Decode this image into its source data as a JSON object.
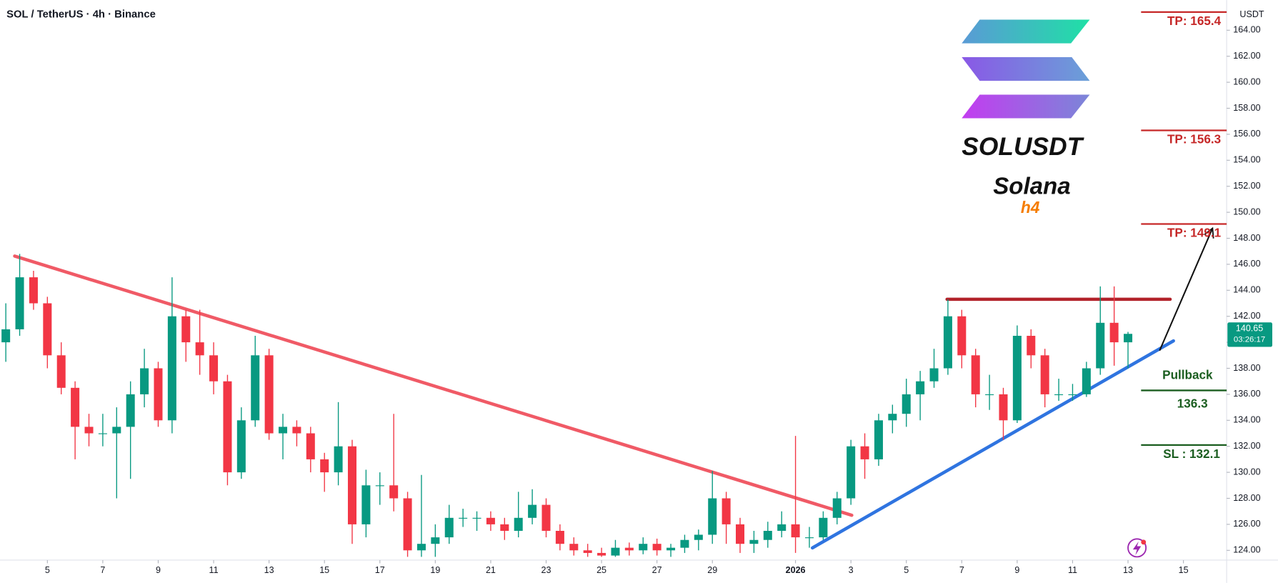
{
  "chart_data": {
    "type": "candlestick",
    "title": "SOL / TetherUS · 4h · Binance",
    "symbol": "SOLUSDT",
    "name": "Solana",
    "timeframe": "h4",
    "currency": "USDT",
    "last_price": 140.65,
    "countdown": "03:26:17",
    "up_color": "#089981",
    "down_color": "#f23645",
    "xlim": [
      2.29,
      46.56
    ],
    "ylim": [
      123.25,
      166.32
    ],
    "xticks": [
      {
        "value": 4,
        "label": "5"
      },
      {
        "value": 6,
        "label": "7"
      },
      {
        "value": 8,
        "label": "9"
      },
      {
        "value": 10,
        "label": "11"
      },
      {
        "value": 12,
        "label": "13"
      },
      {
        "value": 14,
        "label": "15"
      },
      {
        "value": 16,
        "label": "17"
      },
      {
        "value": 18,
        "label": "19"
      },
      {
        "value": 20,
        "label": "21"
      },
      {
        "value": 22,
        "label": "23"
      },
      {
        "value": 24,
        "label": "25"
      },
      {
        "value": 26,
        "label": "27"
      },
      {
        "value": 28,
        "label": "29"
      },
      {
        "value": 31,
        "label": "2026"
      },
      {
        "value": 33,
        "label": "3"
      },
      {
        "value": 35,
        "label": "5"
      },
      {
        "value": 37,
        "label": "7"
      },
      {
        "value": 39,
        "label": "9"
      },
      {
        "value": 41,
        "label": "11"
      },
      {
        "value": 43,
        "label": "13"
      },
      {
        "value": 45,
        "label": "15"
      }
    ],
    "yticks": [
      {
        "value": 124,
        "label": "124.00"
      },
      {
        "value": 126,
        "label": "126.00"
      },
      {
        "value": 128,
        "label": "128.00"
      },
      {
        "value": 130,
        "label": "130.00"
      },
      {
        "value": 132,
        "label": "132.00"
      },
      {
        "value": 134,
        "label": "134.00"
      },
      {
        "value": 136,
        "label": "136.00"
      },
      {
        "value": 138,
        "label": "138.00"
      },
      {
        "value": 140,
        "label": "140.00"
      },
      {
        "value": 142,
        "label": "142.00"
      },
      {
        "value": 144,
        "label": "144.00"
      },
      {
        "value": 146,
        "label": "146.00"
      },
      {
        "value": 148,
        "label": "148.00"
      },
      {
        "value": 150,
        "label": "150.00"
      },
      {
        "value": 152,
        "label": "152.00"
      },
      {
        "value": 154,
        "label": "154.00"
      },
      {
        "value": 156,
        "label": "156.00"
      },
      {
        "value": 158,
        "label": "158.00"
      },
      {
        "value": 160,
        "label": "160.00"
      },
      {
        "value": 162,
        "label": "162.00"
      },
      {
        "value": 164,
        "label": "164.00"
      }
    ],
    "x": [
      2.5,
      3,
      3.5,
      4,
      4.5,
      5,
      5.5,
      6,
      6.5,
      7,
      7.5,
      8,
      8.5,
      9,
      9.5,
      10,
      10.5,
      11,
      11.5,
      12,
      12.5,
      13,
      13.5,
      14,
      14.5,
      15,
      15.5,
      16,
      16.5,
      17,
      17.5,
      18,
      18.5,
      19,
      19.5,
      20,
      20.5,
      21,
      21.5,
      22,
      22.5,
      23,
      23.5,
      24,
      24.5,
      25,
      25.5,
      26,
      26.5,
      27,
      27.5,
      28,
      28.5,
      29,
      29.5,
      30,
      30.5,
      31,
      31.5,
      32,
      32.5,
      33,
      33.5,
      34,
      34.5,
      35,
      35.5,
      36,
      36.5,
      37,
      37.5,
      38,
      38.5,
      39,
      39.5,
      40,
      40.5,
      41,
      41.5,
      42,
      42.5,
      43
    ],
    "open": [
      140,
      141,
      145,
      143,
      139,
      136.5,
      133.5,
      133,
      133,
      133.5,
      136,
      138,
      134,
      142,
      140,
      139,
      137,
      130,
      134,
      139,
      133,
      133.5,
      133,
      131,
      130,
      132,
      126,
      129,
      129,
      128,
      124,
      124.5,
      125,
      126.5,
      126.5,
      126.5,
      126,
      125.5,
      126.5,
      127.5,
      125.5,
      124.5,
      124,
      123.8,
      123.6,
      124.2,
      124,
      124.5,
      124,
      124.2,
      124.8,
      125.2,
      128,
      126,
      124.5,
      124.8,
      125.5,
      126,
      125,
      125,
      126.5,
      128,
      132,
      131,
      134,
      134.5,
      136,
      137,
      138,
      142,
      139,
      136,
      136,
      134,
      140.5,
      139,
      136,
      136,
      136,
      138,
      141.5,
      140
    ],
    "high": [
      143,
      146.8,
      145.5,
      143.5,
      140,
      137,
      134.5,
      134.5,
      135,
      137,
      139.5,
      138.5,
      145,
      142.5,
      142.5,
      140,
      137.5,
      135,
      140.5,
      139.5,
      134.5,
      134,
      133.5,
      131.5,
      135.4,
      132.5,
      130.2,
      130,
      134.5,
      128.5,
      129.8,
      126,
      127.5,
      127.2,
      127,
      127,
      126.5,
      128.5,
      128.7,
      128,
      126,
      125,
      124.5,
      124.2,
      124.8,
      124.6,
      125,
      124.9,
      124.5,
      125.2,
      125.6,
      130.1,
      128.5,
      126.5,
      125.5,
      126.2,
      127,
      132.8,
      125.8,
      127,
      128.5,
      132.5,
      133,
      134.5,
      135.2,
      137.2,
      137.8,
      139.5,
      143.3,
      142.5,
      139.5,
      137.5,
      136.5,
      141.3,
      141,
      139.5,
      137.2,
      136.8,
      138.5,
      144.3,
      144.3,
      140.8
    ],
    "low": [
      138.5,
      140.5,
      142.5,
      138,
      136,
      131,
      132,
      132,
      128,
      129.5,
      135,
      133.5,
      133,
      138.5,
      137.5,
      136,
      129,
      129.5,
      133.5,
      132.5,
      131,
      132,
      130,
      128.5,
      129,
      124.5,
      125,
      127.5,
      127,
      123.5,
      123.5,
      123.5,
      124.5,
      125.8,
      125.5,
      125.5,
      124.8,
      125,
      126,
      125,
      124,
      123.6,
      123.5,
      123.5,
      123.5,
      123.6,
      123.7,
      123.6,
      123.5,
      123.8,
      124,
      124.5,
      124.5,
      123.8,
      123.8,
      124.2,
      125,
      123.8,
      124.2,
      124.8,
      126,
      127.5,
      129.5,
      130.5,
      133,
      133.5,
      134,
      136.5,
      137.5,
      138,
      135,
      134.8,
      132.5,
      133.8,
      138,
      135,
      135.5,
      135.5,
      135.8,
      137.5,
      138.2,
      138
    ],
    "close": [
      141,
      145,
      143,
      139,
      136.5,
      133.5,
      133,
      133,
      133.5,
      136,
      138,
      134,
      142,
      140,
      139,
      137,
      130,
      134,
      139,
      133,
      133.5,
      133,
      131,
      130,
      132,
      126,
      129,
      129,
      128,
      124,
      124.5,
      125,
      126.5,
      126.5,
      126.5,
      126,
      125.5,
      126.5,
      127.5,
      125.5,
      124.5,
      124,
      123.8,
      123.6,
      124.2,
      124,
      124.5,
      124,
      124.2,
      124.8,
      125.2,
      128,
      126,
      124.5,
      124.8,
      125.5,
      126,
      125,
      125,
      126.5,
      128,
      132,
      131,
      134,
      134.5,
      136,
      137,
      138,
      142,
      139,
      136,
      136,
      134,
      140.5,
      139,
      136,
      136,
      136,
      138,
      141.5,
      140,
      140.65
    ],
    "trendlines": [
      {
        "x": [
          2.82,
          33.03
        ],
        "y": [
          146.63,
          126.7
        ],
        "color": "#f05a66"
      },
      {
        "x": [
          31.61,
          44.64
        ],
        "y": [
          124.19,
          140.11
        ],
        "color": "#2f74e0"
      },
      {
        "x": [
          36.47,
          44.52
        ],
        "y": [
          143.31,
          143.31
        ],
        "color": "#b2222a"
      }
    ],
    "arrow": {
      "x": [
        44.14,
        46.05
      ],
      "y": [
        139.36,
        148.77
      ],
      "color": "#111111"
    },
    "levels": [
      {
        "label": "TP: 165.4",
        "value": 165.4,
        "color": "#c62828"
      },
      {
        "label": "TP: 156.3",
        "value": 156.3,
        "color": "#c62828"
      },
      {
        "label": "TP: 149.1",
        "value": 149.1,
        "color": "#c62828"
      },
      {
        "name": "Pullback",
        "label": "136.3",
        "value": 136.3,
        "color": "#1b5e20"
      },
      {
        "label": "SL : 132.1",
        "value": 132.1,
        "color": "#1b5e20"
      }
    ]
  }
}
